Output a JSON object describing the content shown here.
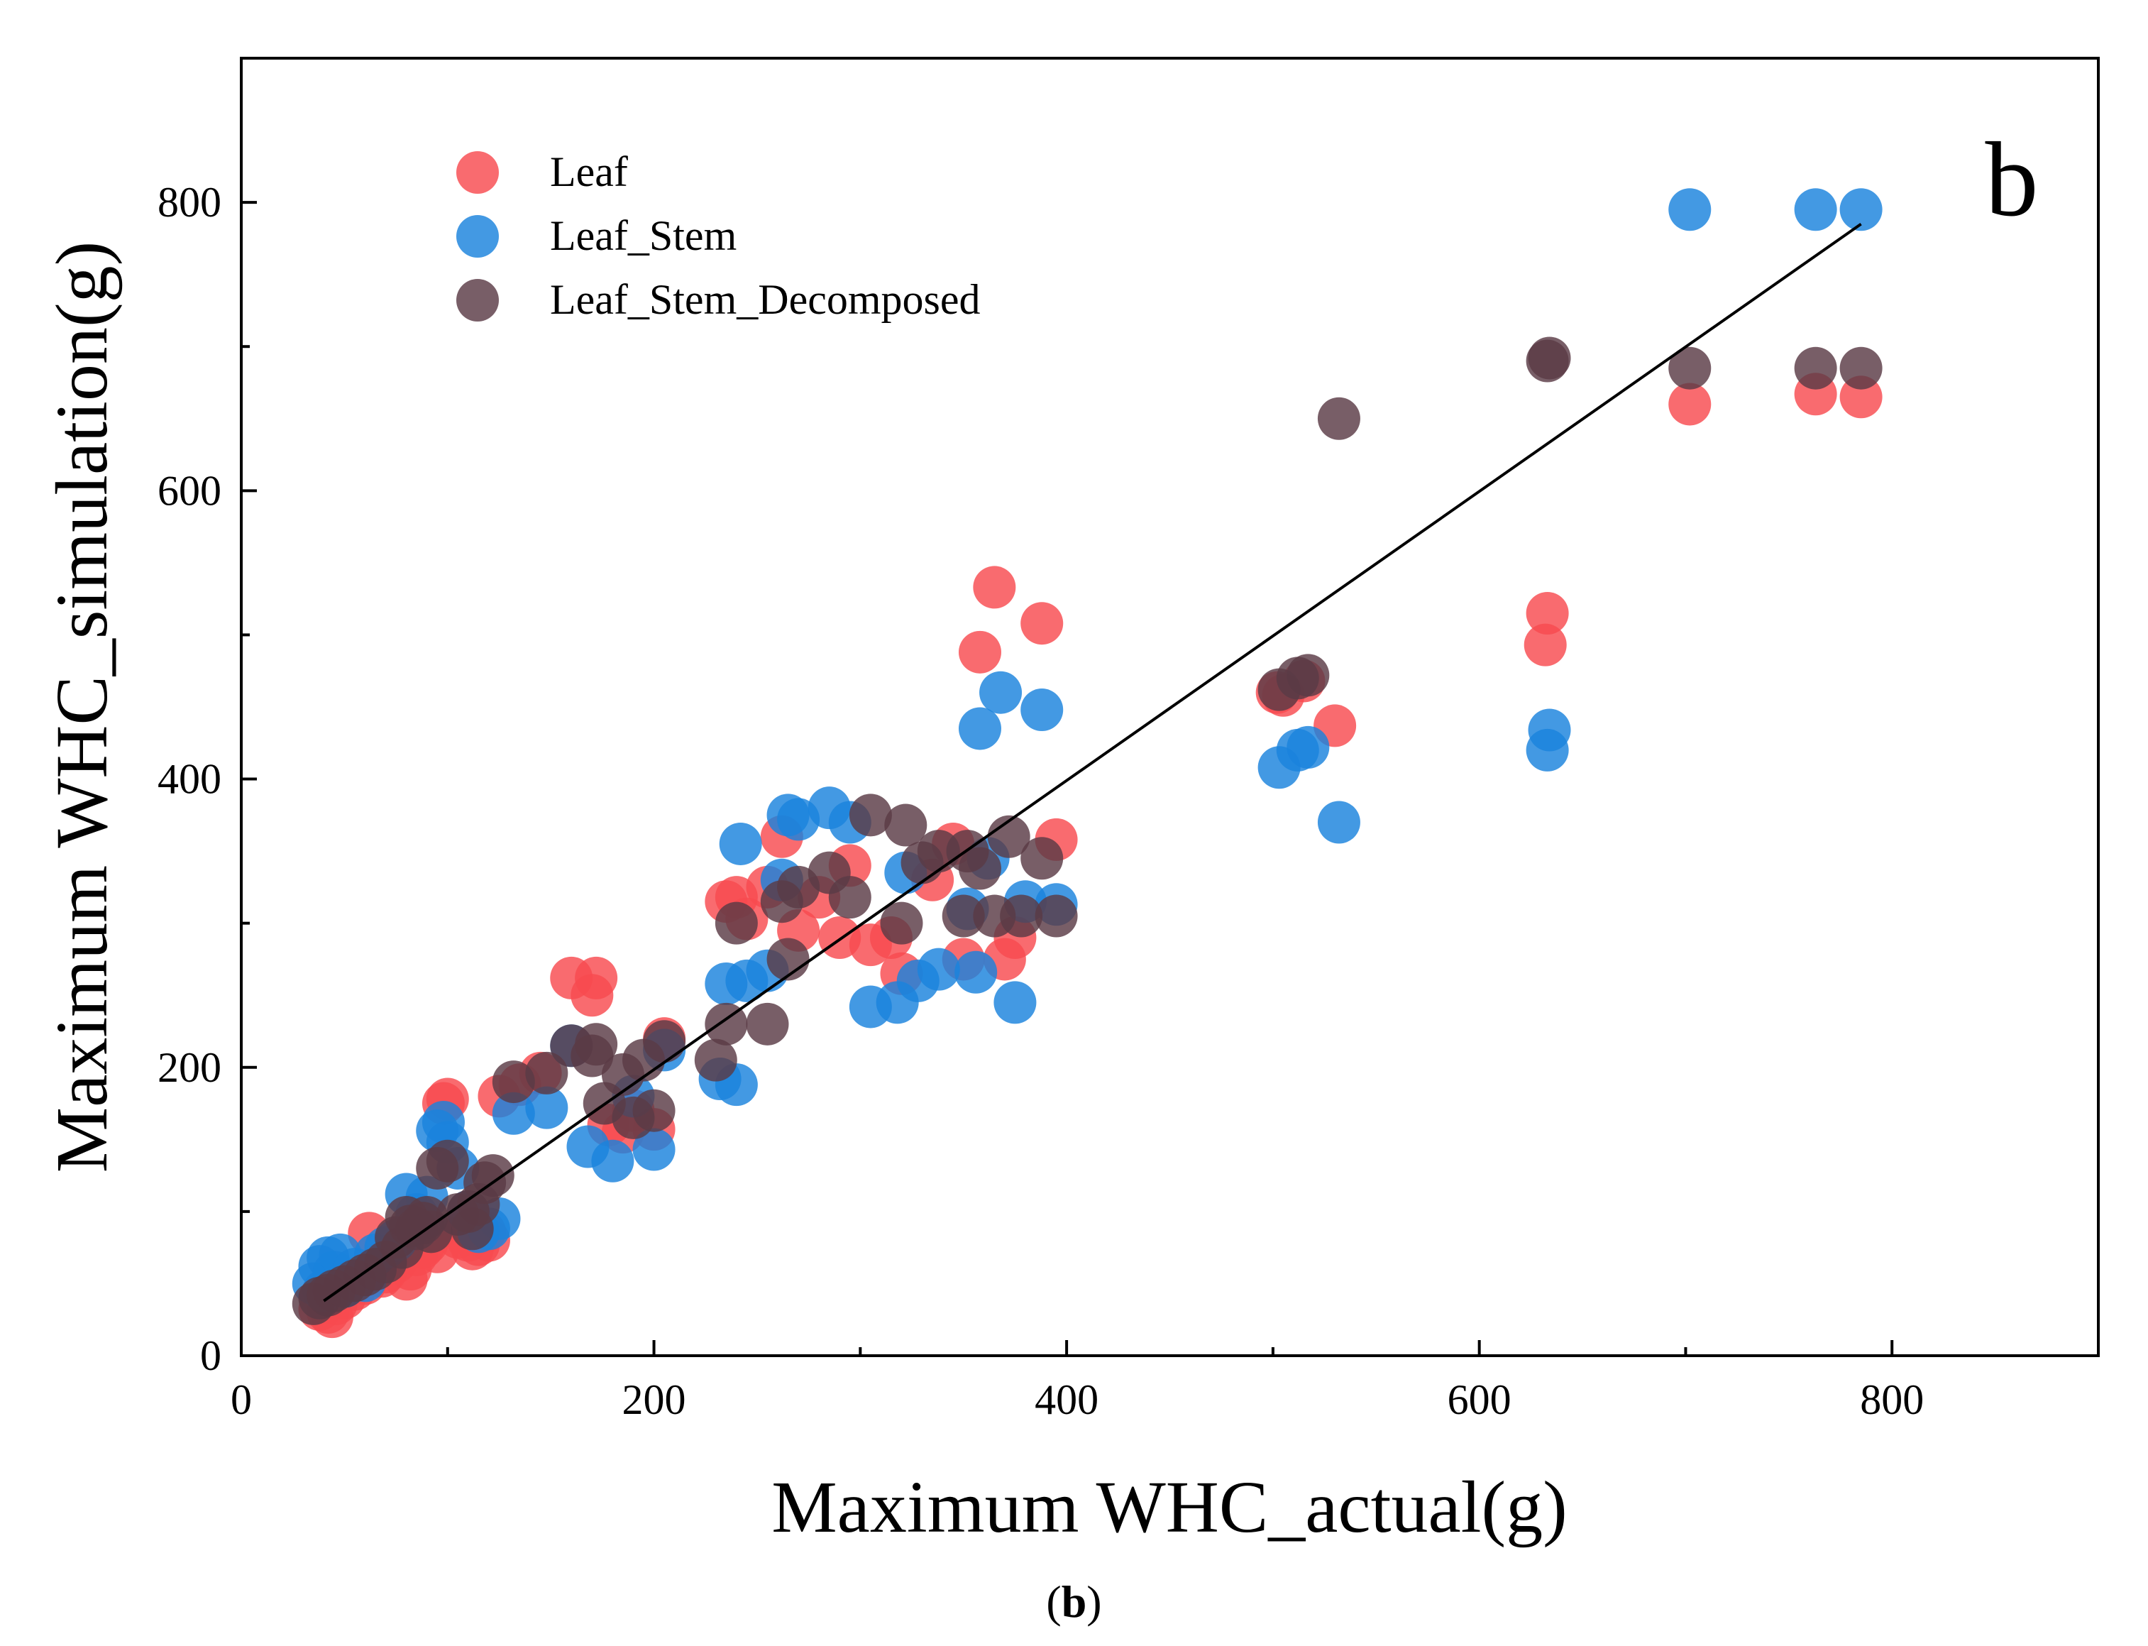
{
  "chart_data": {
    "type": "scatter",
    "xlabel": "Maximum WHC_actual(g)",
    "ylabel": "Maximum WHC_simulation(g)",
    "xlim": [
      0,
      900
    ],
    "ylim": [
      0,
      900
    ],
    "xticks": [
      0,
      200,
      400,
      600,
      800
    ],
    "yticks": [
      0,
      200,
      400,
      600,
      800
    ],
    "panel_label": "b",
    "legend_position": "top-left",
    "fit_line": {
      "x": [
        40,
        785
      ],
      "y": [
        38,
        785
      ]
    },
    "series": [
      {
        "name": "Leaf",
        "color": "#f84a4f",
        "points": [
          [
            38,
            32
          ],
          [
            42,
            30
          ],
          [
            44,
            27
          ],
          [
            46,
            36
          ],
          [
            50,
            40
          ],
          [
            55,
            46
          ],
          [
            60,
            50
          ],
          [
            62,
            85
          ],
          [
            65,
            60
          ],
          [
            68,
            55
          ],
          [
            70,
            58
          ],
          [
            75,
            65
          ],
          [
            78,
            72
          ],
          [
            80,
            53
          ],
          [
            82,
            60
          ],
          [
            85,
            70
          ],
          [
            88,
            75
          ],
          [
            90,
            78
          ],
          [
            95,
            72
          ],
          [
            98,
            175
          ],
          [
            100,
            178
          ],
          [
            105,
            82
          ],
          [
            108,
            85
          ],
          [
            110,
            80
          ],
          [
            112,
            74
          ],
          [
            115,
            77
          ],
          [
            118,
            86
          ],
          [
            120,
            80
          ],
          [
            125,
            180
          ],
          [
            135,
            188
          ],
          [
            145,
            196
          ],
          [
            160,
            262
          ],
          [
            170,
            250
          ],
          [
            172,
            262
          ],
          [
            178,
            160
          ],
          [
            185,
            155
          ],
          [
            190,
            170
          ],
          [
            200,
            157
          ],
          [
            205,
            220
          ],
          [
            235,
            315
          ],
          [
            240,
            318
          ],
          [
            245,
            303
          ],
          [
            255,
            325
          ],
          [
            262,
            360
          ],
          [
            270,
            295
          ],
          [
            280,
            318
          ],
          [
            290,
            290
          ],
          [
            295,
            340
          ],
          [
            305,
            285
          ],
          [
            315,
            290
          ],
          [
            320,
            265
          ],
          [
            335,
            330
          ],
          [
            345,
            355
          ],
          [
            350,
            275
          ],
          [
            358,
            488
          ],
          [
            365,
            533
          ],
          [
            370,
            275
          ],
          [
            375,
            290
          ],
          [
            388,
            508
          ],
          [
            395,
            358
          ],
          [
            502,
            460
          ],
          [
            505,
            458
          ],
          [
            515,
            468
          ],
          [
            530,
            437
          ],
          [
            632,
            493
          ],
          [
            633,
            515
          ],
          [
            702,
            660
          ],
          [
            763,
            667
          ],
          [
            785,
            665
          ]
        ]
      },
      {
        "name": "Leaf_Stem",
        "color": "#1a82dd",
        "points": [
          [
            35,
            50
          ],
          [
            38,
            62
          ],
          [
            40,
            45
          ],
          [
            42,
            68
          ],
          [
            45,
            58
          ],
          [
            48,
            70
          ],
          [
            50,
            48
          ],
          [
            55,
            60
          ],
          [
            60,
            52
          ],
          [
            65,
            70
          ],
          [
            70,
            75
          ],
          [
            75,
            80
          ],
          [
            80,
            112
          ],
          [
            85,
            98
          ],
          [
            90,
            110
          ],
          [
            95,
            156
          ],
          [
            98,
            162
          ],
          [
            100,
            148
          ],
          [
            105,
            130
          ],
          [
            110,
            100
          ],
          [
            115,
            86
          ],
          [
            120,
            88
          ],
          [
            125,
            95
          ],
          [
            132,
            168
          ],
          [
            148,
            172
          ],
          [
            160,
            215
          ],
          [
            168,
            145
          ],
          [
            180,
            135
          ],
          [
            190,
            180
          ],
          [
            200,
            143
          ],
          [
            205,
            212
          ],
          [
            232,
            192
          ],
          [
            235,
            258
          ],
          [
            240,
            188
          ],
          [
            242,
            355
          ],
          [
            245,
            260
          ],
          [
            255,
            267
          ],
          [
            262,
            330
          ],
          [
            265,
            375
          ],
          [
            270,
            372
          ],
          [
            285,
            380
          ],
          [
            295,
            370
          ],
          [
            305,
            242
          ],
          [
            318,
            245
          ],
          [
            322,
            335
          ],
          [
            328,
            260
          ],
          [
            338,
            268
          ],
          [
            352,
            310
          ],
          [
            356,
            266
          ],
          [
            358,
            435
          ],
          [
            362,
            345
          ],
          [
            368,
            460
          ],
          [
            375,
            245
          ],
          [
            380,
            315
          ],
          [
            388,
            448
          ],
          [
            395,
            313
          ],
          [
            503,
            408
          ],
          [
            512,
            420
          ],
          [
            517,
            422
          ],
          [
            532,
            370
          ],
          [
            633,
            420
          ],
          [
            634,
            434
          ],
          [
            702,
            795
          ],
          [
            763,
            795
          ],
          [
            785,
            795
          ]
        ]
      },
      {
        "name": "Leaf_Stem_Decomposed",
        "color": "#5a3a46",
        "points": [
          [
            35,
            36
          ],
          [
            38,
            40
          ],
          [
            42,
            42
          ],
          [
            45,
            45
          ],
          [
            50,
            48
          ],
          [
            55,
            52
          ],
          [
            60,
            56
          ],
          [
            65,
            60
          ],
          [
            70,
            65
          ],
          [
            75,
            82
          ],
          [
            78,
            75
          ],
          [
            80,
            96
          ],
          [
            82,
            90
          ],
          [
            85,
            88
          ],
          [
            88,
            92
          ],
          [
            90,
            96
          ],
          [
            92,
            86
          ],
          [
            95,
            130
          ],
          [
            100,
            135
          ],
          [
            105,
            98
          ],
          [
            110,
            100
          ],
          [
            112,
            88
          ],
          [
            115,
            105
          ],
          [
            118,
            120
          ],
          [
            122,
            125
          ],
          [
            132,
            190
          ],
          [
            148,
            196
          ],
          [
            160,
            215
          ],
          [
            170,
            208
          ],
          [
            172,
            216
          ],
          [
            176,
            175
          ],
          [
            185,
            195
          ],
          [
            190,
            165
          ],
          [
            195,
            205
          ],
          [
            200,
            170
          ],
          [
            205,
            218
          ],
          [
            230,
            205
          ],
          [
            235,
            230
          ],
          [
            240,
            300
          ],
          [
            255,
            230
          ],
          [
            262,
            315
          ],
          [
            265,
            275
          ],
          [
            270,
            325
          ],
          [
            285,
            335
          ],
          [
            295,
            318
          ],
          [
            305,
            375
          ],
          [
            320,
            300
          ],
          [
            322,
            368
          ],
          [
            330,
            342
          ],
          [
            338,
            350
          ],
          [
            350,
            305
          ],
          [
            352,
            350
          ],
          [
            358,
            338
          ],
          [
            365,
            305
          ],
          [
            372,
            360
          ],
          [
            378,
            305
          ],
          [
            388,
            345
          ],
          [
            395,
            305
          ],
          [
            503,
            462
          ],
          [
            512,
            470
          ],
          [
            517,
            472
          ],
          [
            532,
            650
          ],
          [
            633,
            690
          ],
          [
            634,
            692
          ],
          [
            702,
            685
          ],
          [
            763,
            685
          ],
          [
            785,
            685
          ]
        ]
      }
    ]
  },
  "caption": {
    "label": "b",
    "open": "(",
    "close": ")"
  }
}
